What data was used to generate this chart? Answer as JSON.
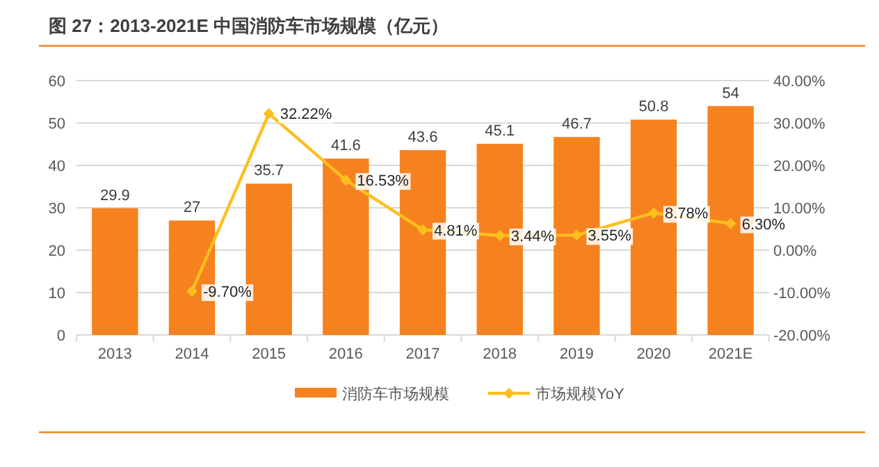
{
  "chart_data": {
    "type": "bar",
    "title": "图 27：2013-2021E 中国消防车市场规模（亿元）",
    "categories": [
      "2013",
      "2014",
      "2015",
      "2016",
      "2017",
      "2018",
      "2019",
      "2020",
      "2021E"
    ],
    "series": [
      {
        "name": "消防车市场规模",
        "color": "#f5821f",
        "values": [
          29.9,
          27,
          35.7,
          41.6,
          43.6,
          45.1,
          46.7,
          50.8,
          54
        ],
        "value_labels": [
          "29.9",
          "27",
          "35.7",
          "41.6",
          "43.6",
          "45.1",
          "46.7",
          "50.8",
          "54"
        ]
      },
      {
        "name": "市场规模YoY",
        "type": "line",
        "axis": "y2",
        "color": "#fcbf1e",
        "marker": "diamond",
        "values": [
          null,
          -9.7,
          32.22,
          16.53,
          4.81,
          3.44,
          3.55,
          8.78,
          6.3
        ],
        "value_labels": [
          null,
          "-9.70%",
          "32.22%",
          "16.53%",
          "4.81%",
          "3.44%",
          "3.55%",
          "8.78%",
          "6.30%"
        ]
      }
    ],
    "ylim": [
      0,
      60
    ],
    "yticks": [
      0,
      10,
      20,
      30,
      40,
      50,
      60
    ],
    "y2lim": [
      -20,
      40
    ],
    "y2ticks": [
      {
        "value": -20,
        "label": "-20.00%"
      },
      {
        "value": -10,
        "label": "-10.00%"
      },
      {
        "value": 0,
        "label": "0.00%"
      },
      {
        "value": 10,
        "label": "10.00%"
      },
      {
        "value": 20,
        "label": "20.00%"
      },
      {
        "value": 30,
        "label": "30.00%"
      },
      {
        "value": 40,
        "label": "40.00%"
      }
    ],
    "grid": "y",
    "legend": "bottom"
  }
}
